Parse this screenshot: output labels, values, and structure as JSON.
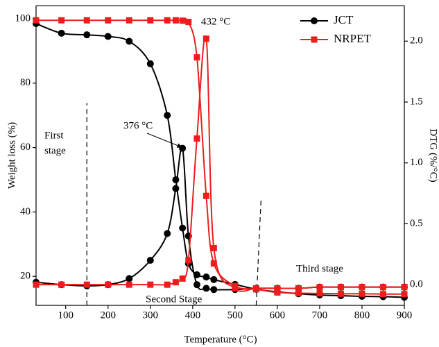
{
  "chart_data": {
    "type": "line",
    "x_label": "Temperature (°C)",
    "y_label": "Weight loss (%)",
    "y2_label": "DTG (%/°C)",
    "x": [
      30,
      90,
      150,
      200,
      250,
      300,
      340,
      360,
      376,
      390,
      410,
      432,
      450,
      500,
      550,
      600,
      650,
      700,
      750,
      800,
      850,
      900
    ],
    "series": [
      {
        "name": "JCT",
        "color": "#000000",
        "marker": "circle",
        "tg": [
          98.5,
          95.5,
          95,
          94.5,
          93,
          86,
          70,
          50,
          35,
          24,
          20.5,
          19.8,
          19,
          17.5,
          16,
          15.2,
          14.6,
          14.2,
          14,
          13.8,
          13.7,
          13.5
        ],
        "dtg": [
          0.02,
          0.0,
          -0.01,
          0.0,
          0.05,
          0.2,
          0.42,
          0.79,
          1.12,
          0.4,
          0.0,
          -0.03,
          -0.04,
          -0.04,
          -0.03,
          -0.03,
          -0.03,
          -0.02,
          -0.02,
          -0.02,
          -0.02,
          -0.02
        ]
      },
      {
        "name": "NRPET",
        "color": "#ee1c1c",
        "marker": "square",
        "tg": [
          99.5,
          99.5,
          99.5,
          99.5,
          99.5,
          99.5,
          99.5,
          99.5,
          99.4,
          99,
          88,
          45,
          24,
          17,
          16,
          15,
          14.8,
          14.7,
          14.6,
          14.6,
          14.5,
          14.5
        ],
        "dtg": [
          0,
          0,
          0,
          0,
          0,
          0,
          0,
          0.02,
          0.05,
          0.2,
          1.2,
          2.02,
          0.3,
          -0.03,
          -0.03,
          -0.03,
          -0.03,
          -0.02,
          -0.02,
          -0.02,
          -0.02,
          -0.02
        ]
      }
    ],
    "xlim": [
      30,
      900
    ],
    "xticks": [
      100,
      200,
      300,
      400,
      500,
      600,
      700,
      800,
      900
    ],
    "ylim": [
      11,
      104
    ],
    "yticks": [
      20,
      40,
      60,
      80,
      100
    ],
    "y2lim": [
      -0.17,
      2.29
    ],
    "y2ticks": [
      {
        "value": 0,
        "label": "0.0"
      },
      0.5,
      {
        "value": 1,
        "label": "1.0"
      },
      1.5,
      {
        "value": 2,
        "label": "2.0"
      }
    ],
    "stage_boundaries": [
      150,
      550
    ],
    "annotations": {
      "peak_jct": "376 °C",
      "peak_nrpet": "432 °C",
      "first_stage_1": "First",
      "first_stage_2": "stage",
      "second_stage": "Second Stage",
      "third_stage": "Third stage"
    },
    "legend": "top-right"
  }
}
